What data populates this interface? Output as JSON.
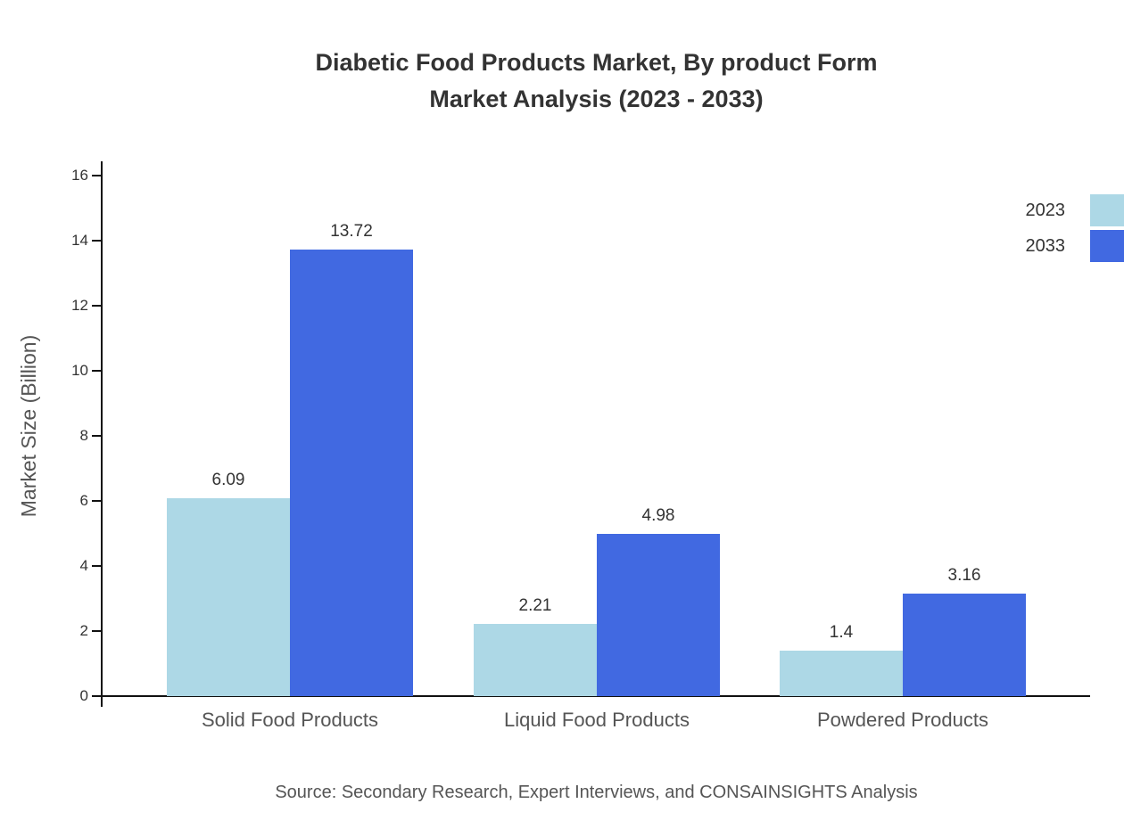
{
  "title": {
    "line1": "Diabetic Food Products Market, By product Form",
    "line2": "Market Analysis (2023 - 2033)"
  },
  "source": "Source: Secondary Research, Expert Interviews, and CONSAINSIGHTS Analysis",
  "chart_data": {
    "type": "bar",
    "categories": [
      "Solid Food Products",
      "Liquid Food Products",
      "Powdered Products"
    ],
    "series": [
      {
        "name": "2023",
        "color": "#ADD8E6",
        "values": [
          6.09,
          2.21,
          1.4
        ]
      },
      {
        "name": "2033",
        "color": "#4169E1",
        "values": [
          13.72,
          4.98,
          3.16
        ]
      }
    ],
    "title": "Diabetic Food Products Market, By product Form Market Analysis (2023 - 2033)",
    "xlabel": "",
    "ylabel": "Market Size (Billion)",
    "ylim": [
      0,
      16
    ],
    "yticks": [
      0,
      2,
      4,
      6,
      8,
      10,
      12,
      14,
      16
    ],
    "grid": false,
    "legend_position": "top-right"
  }
}
